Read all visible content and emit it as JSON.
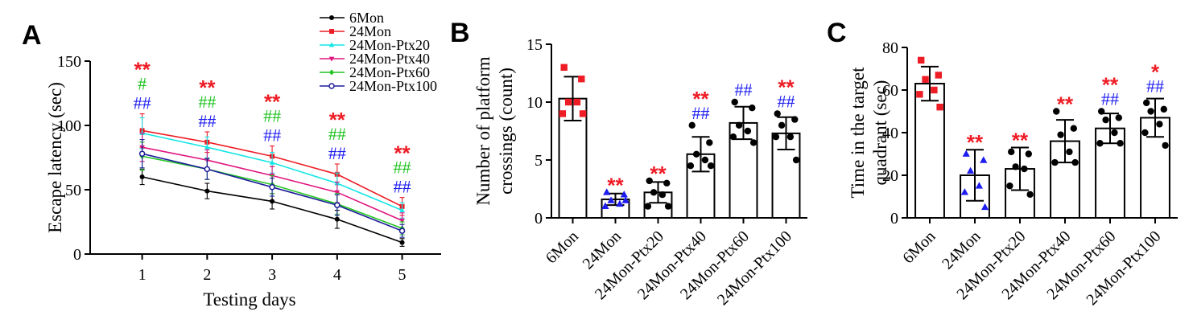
{
  "colors": {
    "red": "#ee1c25",
    "green": "#22c422",
    "blue": "#1d1df0",
    "black": "#000000"
  },
  "chart_data": [
    {
      "panel": "A",
      "type": "line",
      "xlabel": "Testing days",
      "ylabel": "Escape latency (sec)",
      "x": [
        1,
        2,
        3,
        4,
        5
      ],
      "xlim": [
        0.2,
        5.6
      ],
      "ylim": [
        0,
        150
      ],
      "yticks": [
        0,
        50,
        100,
        150
      ],
      "legend_position": "top-right",
      "series": [
        {
          "name": "6Mon",
          "color": "#000000",
          "marker": "circle",
          "values": [
            60,
            49,
            41,
            27,
            9
          ],
          "err": [
            6,
            6,
            6,
            7,
            3
          ]
        },
        {
          "name": "24Mon",
          "color": "#ee1c25",
          "marker": "square",
          "values": [
            96,
            87,
            76,
            62,
            37
          ],
          "err": [
            13,
            8,
            8,
            8,
            7
          ]
        },
        {
          "name": "24Mon-Ptx20",
          "color": "#14e6e6",
          "marker": "triangle-up",
          "values": [
            94,
            83,
            71,
            55,
            34
          ],
          "err": [
            12,
            8,
            8,
            8,
            6
          ]
        },
        {
          "name": "24Mon-Ptx40",
          "color": "#e0157f",
          "marker": "triangle-down",
          "values": [
            83,
            73,
            61,
            48,
            26
          ],
          "err": [
            11,
            8,
            7,
            8,
            6
          ]
        },
        {
          "name": "24Mon-Ptx60",
          "color": "#22c422",
          "marker": "diamond",
          "values": [
            76,
            66,
            54,
            39,
            20
          ],
          "err": [
            11,
            8,
            7,
            8,
            5
          ]
        },
        {
          "name": "24Mon-Ptx100",
          "color": "#1d1d9a",
          "marker": "open-circle",
          "values": [
            78,
            66,
            52,
            38,
            18
          ],
          "err": [
            11,
            8,
            7,
            8,
            5
          ]
        }
      ],
      "annotations": [
        {
          "x": 1,
          "rows": [
            {
              "text": "**",
              "color": "#ee1c25"
            },
            {
              "text": "#",
              "color": "#22c422"
            },
            {
              "text": "##",
              "color": "#1d1df0"
            }
          ]
        },
        {
          "x": 2,
          "rows": [
            {
              "text": "**",
              "color": "#ee1c25"
            },
            {
              "text": "##",
              "color": "#22c422"
            },
            {
              "text": "##",
              "color": "#1d1df0"
            }
          ]
        },
        {
          "x": 3,
          "rows": [
            {
              "text": "**",
              "color": "#ee1c25"
            },
            {
              "text": "##",
              "color": "#22c422"
            },
            {
              "text": "##",
              "color": "#1d1df0"
            }
          ]
        },
        {
          "x": 4,
          "rows": [
            {
              "text": "**",
              "color": "#ee1c25"
            },
            {
              "text": "##",
              "color": "#22c422"
            },
            {
              "text": "##",
              "color": "#1d1df0"
            }
          ]
        },
        {
          "x": 5,
          "rows": [
            {
              "text": "**",
              "color": "#ee1c25"
            },
            {
              "text": "##",
              "color": "#22c422"
            },
            {
              "text": "##",
              "color": "#1d1df0"
            }
          ]
        }
      ]
    },
    {
      "panel": "B",
      "type": "bar",
      "ylabel": [
        "Number of  platform",
        "crossings (count)"
      ],
      "categories": [
        "6Mon",
        "24Mon",
        "24Mon-Ptx20",
        "24Mon-Ptx40",
        "24Mon-Ptx60",
        "24Mon-Ptx100"
      ],
      "values": [
        10.3,
        1.6,
        2.2,
        5.5,
        8.2,
        7.3
      ],
      "err": [
        1.9,
        0.5,
        0.9,
        1.5,
        1.4,
        1.4
      ],
      "ylim": [
        0,
        15
      ],
      "yticks": [
        0,
        5,
        10,
        15
      ],
      "points": [
        {
          "color": "#ee1c25",
          "marker": "square",
          "values": [
            13,
            12,
            10,
            10,
            9,
            9
          ]
        },
        {
          "color": "#1d1df0",
          "marker": "triangle-up",
          "values": [
            2.2,
            2.0,
            1.5,
            1.2,
            1.0,
            1.5
          ]
        },
        {
          "color": "#000000",
          "marker": "circle",
          "values": [
            3.2,
            3.0,
            2.2,
            2.0,
            1.0,
            1.0
          ]
        },
        {
          "color": "#000000",
          "marker": "circle",
          "values": [
            8,
            6.5,
            5.5,
            5,
            4.5,
            4.5
          ]
        },
        {
          "color": "#000000",
          "marker": "circle",
          "values": [
            10,
            9.5,
            8,
            7.5,
            7,
            6.5
          ]
        },
        {
          "color": "#000000",
          "marker": "circle",
          "values": [
            9,
            8.5,
            8,
            7,
            7,
            5
          ]
        }
      ],
      "annotations": [
        {
          "category": 1,
          "rows": [
            {
              "text": "**",
              "color": "#ee1c25"
            }
          ]
        },
        {
          "category": 2,
          "rows": [
            {
              "text": "**",
              "color": "#ee1c25"
            }
          ]
        },
        {
          "category": 3,
          "rows": [
            {
              "text": "**",
              "color": "#ee1c25"
            },
            {
              "text": "##",
              "color": "#1d1df0"
            }
          ]
        },
        {
          "category": 4,
          "rows": [
            {
              "text": "##",
              "color": "#1d1df0"
            }
          ]
        },
        {
          "category": 5,
          "rows": [
            {
              "text": "**",
              "color": "#ee1c25"
            },
            {
              "text": "##",
              "color": "#1d1df0"
            }
          ]
        }
      ]
    },
    {
      "panel": "C",
      "type": "bar",
      "ylabel": [
        "Time in the target",
        "quadrant (sec)"
      ],
      "categories": [
        "6Mon",
        "24Mon",
        "24Mon-Ptx20",
        "24Mon-Ptx40",
        "24Mon-Ptx60",
        "24Mon-Ptx100"
      ],
      "values": [
        63,
        20,
        23,
        36,
        42,
        47
      ],
      "err": [
        8,
        12,
        10,
        10,
        7,
        9
      ],
      "ylim": [
        0,
        80
      ],
      "yticks": [
        0,
        20,
        40,
        60,
        80
      ],
      "points": [
        {
          "color": "#ee1c25",
          "marker": "square",
          "values": [
            74,
            67,
            65,
            60,
            58,
            52
          ]
        },
        {
          "color": "#1d1df0",
          "marker": "triangle-up",
          "values": [
            30,
            27,
            22,
            15,
            12,
            5
          ]
        },
        {
          "color": "#000000",
          "marker": "circle",
          "values": [
            31,
            30,
            24,
            23,
            15,
            11
          ]
        },
        {
          "color": "#000000",
          "marker": "circle",
          "values": [
            50,
            42,
            39,
            31,
            26,
            26
          ]
        },
        {
          "color": "#000000",
          "marker": "circle",
          "values": [
            50,
            47,
            46,
            40,
            35,
            35
          ]
        },
        {
          "color": "#000000",
          "marker": "circle",
          "values": [
            54,
            51,
            50,
            44,
            40,
            34
          ]
        }
      ],
      "annotations": [
        {
          "category": 1,
          "rows": [
            {
              "text": "**",
              "color": "#ee1c25"
            }
          ]
        },
        {
          "category": 2,
          "rows": [
            {
              "text": "**",
              "color": "#ee1c25"
            }
          ]
        },
        {
          "category": 3,
          "rows": [
            {
              "text": "**",
              "color": "#ee1c25"
            }
          ]
        },
        {
          "category": 4,
          "rows": [
            {
              "text": "**",
              "color": "#ee1c25"
            },
            {
              "text": "##",
              "color": "#1d1df0"
            }
          ]
        },
        {
          "category": 5,
          "rows": [
            {
              "text": "*",
              "color": "#ee1c25"
            },
            {
              "text": "##",
              "color": "#1d1df0"
            }
          ]
        }
      ]
    }
  ]
}
